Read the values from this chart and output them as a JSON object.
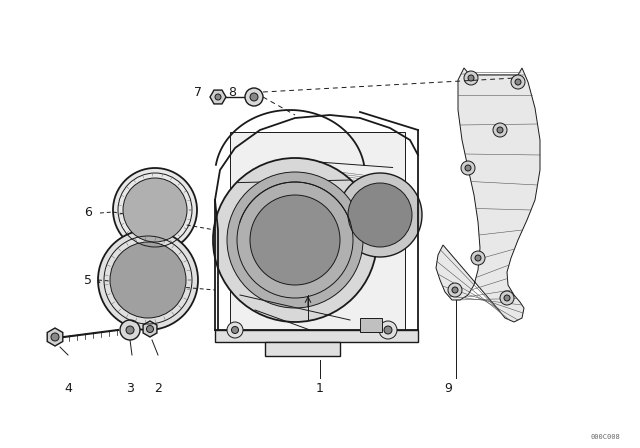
{
  "bg_color": "#ffffff",
  "line_color": "#1a1a1a",
  "watermark": "000C008",
  "figsize": [
    6.4,
    4.48
  ],
  "dpi": 100
}
